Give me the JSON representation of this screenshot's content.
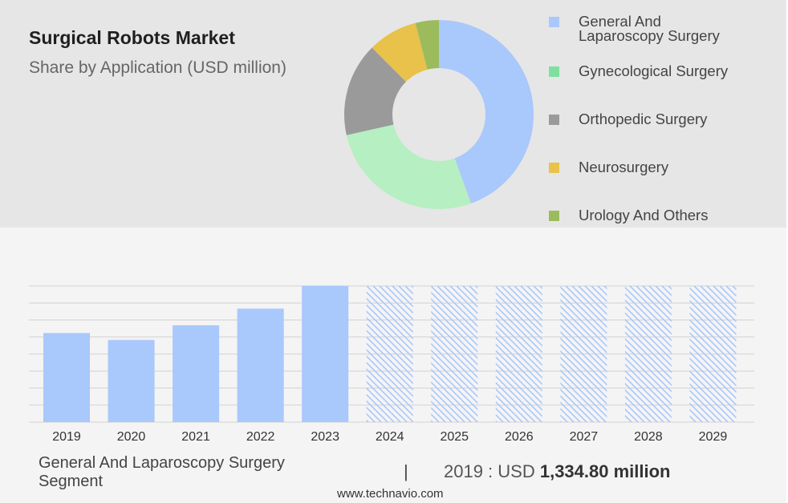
{
  "header": {
    "title": "Surgical Robots Market",
    "subtitle": "Share by Application (USD million)"
  },
  "legend": [
    {
      "label_lines": [
        "General And",
        "Laparoscopy Surgery"
      ],
      "color": "#a9c8fb"
    },
    {
      "label_lines": [
        "Gynecological Surgery"
      ],
      "color": "#7ee0a0"
    },
    {
      "label_lines": [
        "Orthopedic Surgery"
      ],
      "color": "#9a9a9a"
    },
    {
      "label_lines": [
        "Neurosurgery"
      ],
      "color": "#e8c24a"
    },
    {
      "label_lines": [
        "Urology And Others"
      ],
      "color": "#9cbb5c"
    }
  ],
  "chart_data": [
    {
      "type": "pie",
      "donut": true,
      "labels": [
        "General And Laparoscopy Surgery",
        "Gynecological Surgery",
        "Orthopedic Surgery",
        "Neurosurgery",
        "Urology And Others"
      ],
      "values": [
        44.5,
        27,
        16,
        8.5,
        4
      ],
      "colors": [
        "#a9c8fb",
        "#b6efc1",
        "#9a9a9a",
        "#e8c24a",
        "#9cbb5c"
      ]
    },
    {
      "type": "bar",
      "categories": [
        "2019",
        "2020",
        "2021",
        "2022",
        "2023",
        "2024",
        "2025",
        "2026",
        "2027",
        "2028",
        "2029"
      ],
      "values": [
        1334.8,
        1230,
        1450,
        1700,
        2040,
        null,
        null,
        null,
        null,
        null,
        null
      ],
      "forecast_categories": [
        "2024",
        "2025",
        "2026",
        "2027",
        "2028",
        "2029"
      ],
      "ylim": [
        0,
        2040
      ],
      "grid": true,
      "bar_color": "#a9c8fb",
      "forecast_pattern": "hatched"
    }
  ],
  "footer": {
    "segment_line1": "General And Laparoscopy Surgery",
    "segment_line2": "Segment",
    "separator": "|",
    "value_prefix": "2019 : USD ",
    "value_amount": "1,334.80 million",
    "source": "www.technavio.com"
  }
}
